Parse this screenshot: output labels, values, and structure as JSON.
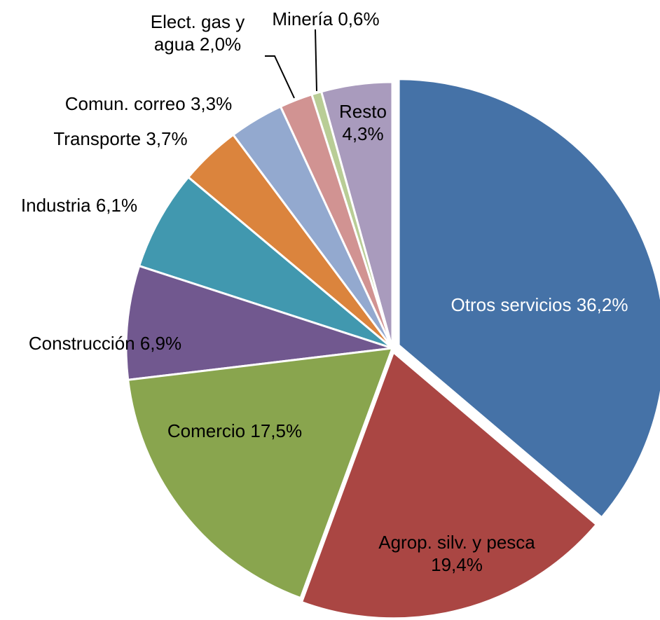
{
  "chart_data": {
    "type": "pie",
    "categories": [
      "Otros servicios",
      "Agrop. silv. y pesca",
      "Comercio",
      "Construcción",
      "Industria",
      "Transporte",
      "Comun. correo",
      "Elect. gas y agua",
      "Minería",
      "Resto"
    ],
    "values": [
      36.2,
      19.4,
      17.5,
      6.9,
      6.1,
      3.7,
      3.3,
      2.0,
      0.6,
      4.3
    ],
    "value_labels": [
      "36,2%",
      "19,4%",
      "17,5%",
      "6,9%",
      "6,1%",
      "3,7%",
      "3,3%",
      "2,0%",
      "0,6%",
      "4,3%"
    ],
    "colors": [
      "#4572a7",
      "#aa4643",
      "#89a54e",
      "#71588f",
      "#4198af",
      "#db843d",
      "#93a9cf",
      "#d19392",
      "#b9cd96",
      "#a99bbd"
    ]
  }
}
